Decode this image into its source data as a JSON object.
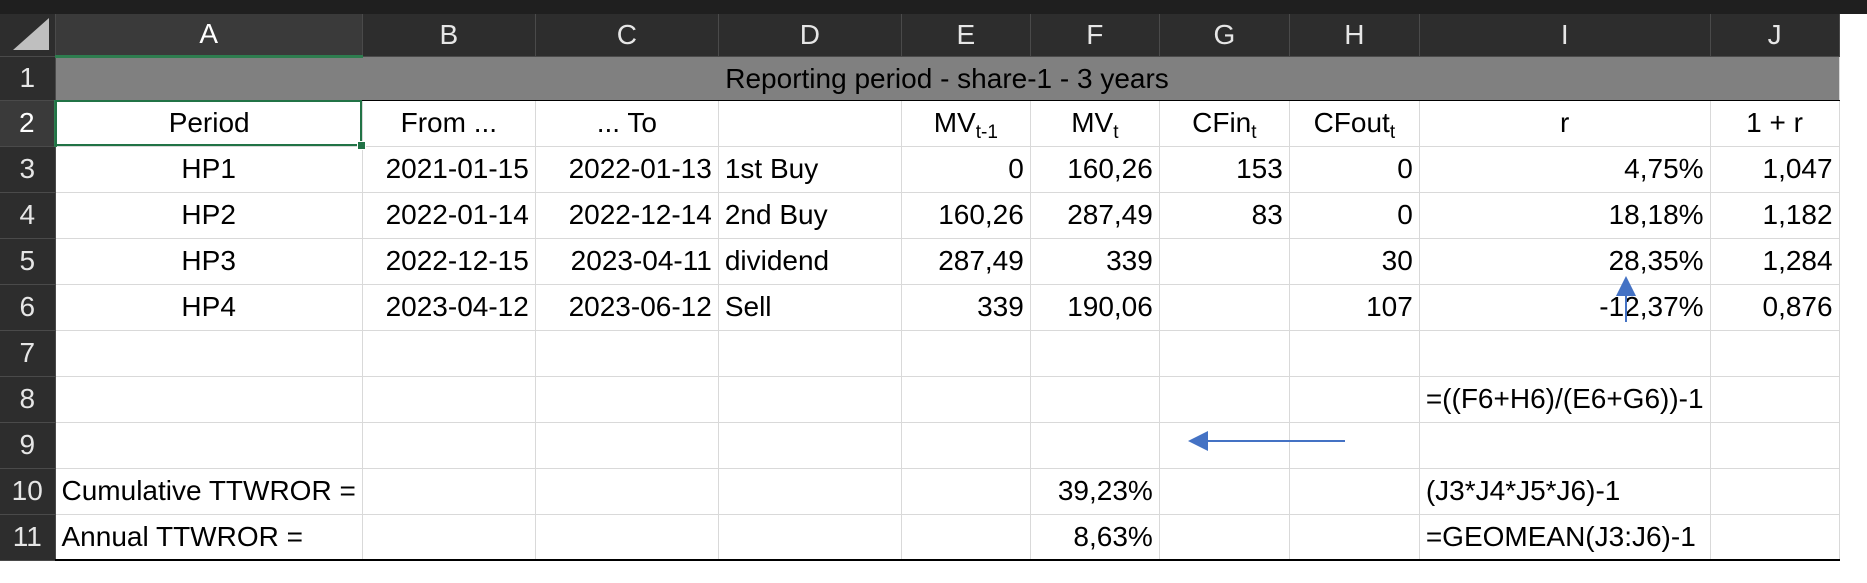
{
  "columns": [
    "A",
    "B",
    "C",
    "D",
    "E",
    "F",
    "G",
    "H",
    "I",
    "J"
  ],
  "rows": [
    "1",
    "2",
    "3",
    "4",
    "5",
    "6",
    "7",
    "8",
    "9",
    "10",
    "11"
  ],
  "banner": "Reporting period - share-1 - 3 years",
  "headers": {
    "period": "Period",
    "from": "From ...",
    "to": "... To",
    "d": "",
    "mv_prev_base": "MV",
    "mv_prev_sub": "t-1",
    "mv_base": "MV",
    "mv_sub": "t",
    "cfin_base": "CFin",
    "cfin_sub": "t",
    "cfout_base": "CFout",
    "cfout_sub": "t",
    "r": "r",
    "one_plus_r": "1 + r"
  },
  "data_rows": [
    {
      "period": "HP1",
      "from": "2021-01-15",
      "to": "2022-01-13",
      "desc": "1st Buy",
      "mv_prev": "0",
      "mv": "160,26",
      "cfin": "153",
      "cfout": "0",
      "r": "4,75%",
      "one_plus_r": "1,047"
    },
    {
      "period": "HP2",
      "from": "2022-01-14",
      "to": "2022-12-14",
      "desc": "2nd Buy",
      "mv_prev": "160,26",
      "mv": "287,49",
      "cfin": "83",
      "cfout": "0",
      "r": "18,18%",
      "one_plus_r": "1,182"
    },
    {
      "period": "HP3",
      "from": "2022-12-15",
      "to": "2023-04-11",
      "desc": "dividend",
      "mv_prev": "287,49",
      "mv": "339",
      "cfin": "",
      "cfout": "30",
      "r": "28,35%",
      "one_plus_r": "1,284"
    },
    {
      "period": "HP4",
      "from": "2023-04-12",
      "to": "2023-06-12",
      "desc": "Sell",
      "mv_prev": "339",
      "mv": "190,06",
      "cfin": "",
      "cfout": "107",
      "r": "-12,37%",
      "one_plus_r": "0,876"
    }
  ],
  "formula_r": "=((F6+H6)/(E6+G6))-1",
  "cumulative": {
    "label": "Cumulative TTWROR =",
    "value": "39,23%",
    "formula": "(J3*J4*J5*J6)-1"
  },
  "annual": {
    "label": "Annual TTWROR =",
    "value": "8,63%",
    "formula": "=GEOMEAN(J3:J6)-1"
  },
  "colors": {
    "header_bg": "#2d2d2d",
    "banner": "#808080",
    "selection": "#217346",
    "arrow": "#4472c4"
  }
}
